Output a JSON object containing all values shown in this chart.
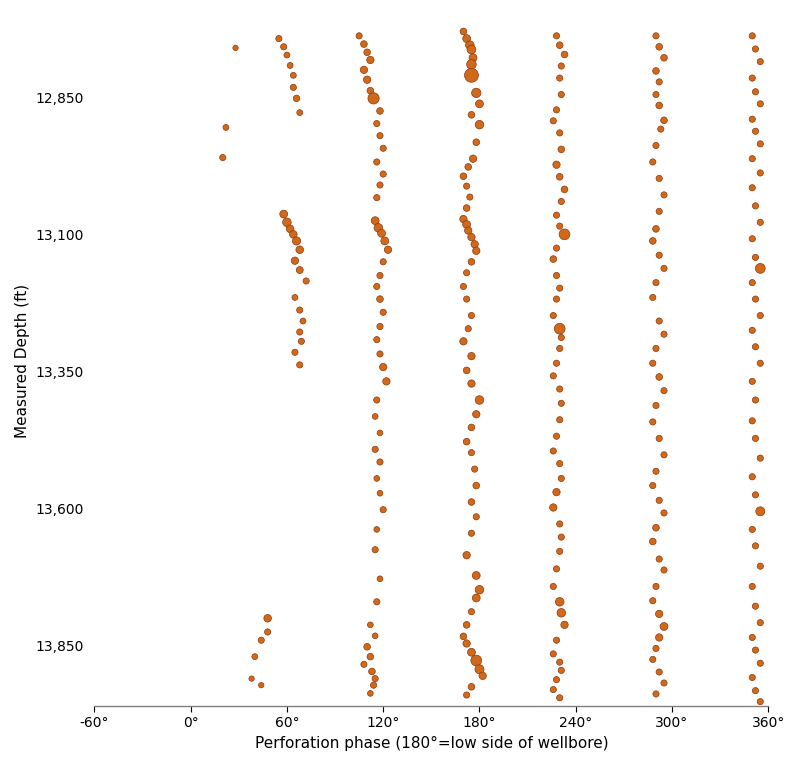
{
  "xlabel": "Perforation phase (180°=low side of wellbore)",
  "ylabel": "Measured Depth (ft)",
  "xlim": [
    -60,
    360
  ],
  "ylim": [
    13960,
    12700
  ],
  "xticks": [
    -60,
    0,
    60,
    120,
    180,
    240,
    300,
    360
  ],
  "yticks": [
    12850,
    13100,
    13350,
    13600,
    13850
  ],
  "bubble_color": "#D2681A",
  "bubble_edge_color": "#8B3A0A",
  "background_color": "#ffffff",
  "points": [
    [
      28,
      12760,
      15
    ],
    [
      22,
      12905,
      18
    ],
    [
      20,
      12960,
      20
    ],
    [
      48,
      13800,
      30
    ],
    [
      48,
      13825,
      20
    ],
    [
      44,
      13840,
      20
    ],
    [
      40,
      13870,
      18
    ],
    [
      38,
      13910,
      15
    ],
    [
      44,
      13922,
      15
    ],
    [
      55,
      12743,
      20
    ],
    [
      58,
      12758,
      20
    ],
    [
      60,
      12773,
      18
    ],
    [
      62,
      12792,
      18
    ],
    [
      64,
      12810,
      18
    ],
    [
      64,
      12832,
      20
    ],
    [
      66,
      12852,
      22
    ],
    [
      68,
      12878,
      18
    ],
    [
      58,
      13063,
      32
    ],
    [
      60,
      13078,
      38
    ],
    [
      62,
      13090,
      30
    ],
    [
      64,
      13100,
      30
    ],
    [
      66,
      13112,
      35
    ],
    [
      68,
      13128,
      30
    ],
    [
      65,
      13148,
      28
    ],
    [
      68,
      13165,
      25
    ],
    [
      72,
      13185,
      20
    ],
    [
      65,
      13215,
      18
    ],
    [
      68,
      13238,
      20
    ],
    [
      70,
      13258,
      18
    ],
    [
      68,
      13278,
      20
    ],
    [
      69,
      13295,
      20
    ],
    [
      65,
      13315,
      20
    ],
    [
      68,
      13338,
      20
    ],
    [
      105,
      12738,
      20
    ],
    [
      108,
      12753,
      23
    ],
    [
      110,
      12768,
      23
    ],
    [
      112,
      12782,
      28
    ],
    [
      108,
      12800,
      28
    ],
    [
      110,
      12818,
      28
    ],
    [
      112,
      12838,
      23
    ],
    [
      114,
      12852,
      65
    ],
    [
      118,
      12875,
      23
    ],
    [
      116,
      12898,
      20
    ],
    [
      118,
      12920,
      20
    ],
    [
      120,
      12943,
      20
    ],
    [
      116,
      12968,
      20
    ],
    [
      120,
      12990,
      20
    ],
    [
      118,
      13010,
      20
    ],
    [
      116,
      13033,
      20
    ],
    [
      115,
      13075,
      32
    ],
    [
      117,
      13088,
      38
    ],
    [
      119,
      13098,
      32
    ],
    [
      121,
      13112,
      32
    ],
    [
      123,
      13128,
      28
    ],
    [
      120,
      13150,
      20
    ],
    [
      118,
      13175,
      20
    ],
    [
      116,
      13195,
      20
    ],
    [
      118,
      13218,
      23
    ],
    [
      120,
      13242,
      20
    ],
    [
      118,
      13268,
      20
    ],
    [
      116,
      13292,
      20
    ],
    [
      118,
      13318,
      20
    ],
    [
      120,
      13342,
      28
    ],
    [
      122,
      13368,
      28
    ],
    [
      116,
      13402,
      20
    ],
    [
      115,
      13432,
      17
    ],
    [
      118,
      13462,
      17
    ],
    [
      115,
      13492,
      20
    ],
    [
      118,
      13515,
      20
    ],
    [
      116,
      13545,
      17
    ],
    [
      118,
      13572,
      17
    ],
    [
      120,
      13602,
      20
    ],
    [
      116,
      13638,
      17
    ],
    [
      115,
      13675,
      20
    ],
    [
      118,
      13728,
      17
    ],
    [
      116,
      13770,
      20
    ],
    [
      112,
      13812,
      17
    ],
    [
      115,
      13832,
      17
    ],
    [
      110,
      13852,
      23
    ],
    [
      112,
      13870,
      23
    ],
    [
      108,
      13884,
      20
    ],
    [
      113,
      13897,
      23
    ],
    [
      115,
      13910,
      20
    ],
    [
      114,
      13922,
      20
    ],
    [
      112,
      13937,
      17
    ],
    [
      170,
      12730,
      23
    ],
    [
      172,
      12743,
      32
    ],
    [
      174,
      12755,
      38
    ],
    [
      175,
      12763,
      40
    ],
    [
      176,
      12778,
      32
    ],
    [
      175,
      12790,
      48
    ],
    [
      175,
      12810,
      100
    ],
    [
      178,
      12842,
      45
    ],
    [
      180,
      12862,
      32
    ],
    [
      175,
      12882,
      23
    ],
    [
      180,
      12900,
      38
    ],
    [
      178,
      12932,
      23
    ],
    [
      176,
      12962,
      28
    ],
    [
      173,
      12977,
      23
    ],
    [
      170,
      12994,
      23
    ],
    [
      172,
      13012,
      20
    ],
    [
      174,
      13032,
      20
    ],
    [
      172,
      13052,
      23
    ],
    [
      170,
      13072,
      28
    ],
    [
      172,
      13082,
      32
    ],
    [
      173,
      13093,
      28
    ],
    [
      175,
      13105,
      28
    ],
    [
      177,
      13118,
      28
    ],
    [
      178,
      13130,
      28
    ],
    [
      175,
      13150,
      23
    ],
    [
      172,
      13170,
      20
    ],
    [
      170,
      13195,
      20
    ],
    [
      172,
      13218,
      20
    ],
    [
      175,
      13248,
      20
    ],
    [
      173,
      13272,
      20
    ],
    [
      170,
      13295,
      28
    ],
    [
      175,
      13322,
      28
    ],
    [
      172,
      13348,
      23
    ],
    [
      175,
      13372,
      28
    ],
    [
      180,
      13402,
      38
    ],
    [
      178,
      13428,
      28
    ],
    [
      175,
      13452,
      23
    ],
    [
      172,
      13478,
      23
    ],
    [
      175,
      13498,
      20
    ],
    [
      177,
      13528,
      20
    ],
    [
      178,
      13558,
      23
    ],
    [
      175,
      13588,
      23
    ],
    [
      178,
      13615,
      20
    ],
    [
      175,
      13645,
      20
    ],
    [
      172,
      13685,
      28
    ],
    [
      178,
      13722,
      32
    ],
    [
      180,
      13748,
      38
    ],
    [
      178,
      13763,
      32
    ],
    [
      175,
      13788,
      20
    ],
    [
      172,
      13812,
      23
    ],
    [
      170,
      13833,
      23
    ],
    [
      172,
      13846,
      28
    ],
    [
      175,
      13862,
      32
    ],
    [
      178,
      13877,
      60
    ],
    [
      180,
      13893,
      42
    ],
    [
      182,
      13905,
      28
    ],
    [
      175,
      13925,
      23
    ],
    [
      172,
      13940,
      20
    ],
    [
      228,
      12738,
      20
    ],
    [
      230,
      12755,
      23
    ],
    [
      233,
      12772,
      23
    ],
    [
      231,
      12793,
      20
    ],
    [
      230,
      12815,
      20
    ],
    [
      231,
      12845,
      20
    ],
    [
      228,
      12873,
      20
    ],
    [
      226,
      12893,
      20
    ],
    [
      230,
      12915,
      20
    ],
    [
      231,
      12945,
      23
    ],
    [
      228,
      12973,
      28
    ],
    [
      230,
      12995,
      23
    ],
    [
      233,
      13018,
      23
    ],
    [
      231,
      13040,
      20
    ],
    [
      228,
      13065,
      20
    ],
    [
      230,
      13085,
      20
    ],
    [
      233,
      13100,
      60
    ],
    [
      228,
      13125,
      20
    ],
    [
      226,
      13145,
      23
    ],
    [
      228,
      13175,
      20
    ],
    [
      230,
      13198,
      20
    ],
    [
      228,
      13218,
      20
    ],
    [
      226,
      13248,
      20
    ],
    [
      230,
      13272,
      60
    ],
    [
      231,
      13288,
      20
    ],
    [
      230,
      13308,
      20
    ],
    [
      228,
      13335,
      20
    ],
    [
      226,
      13358,
      20
    ],
    [
      230,
      13382,
      20
    ],
    [
      231,
      13408,
      20
    ],
    [
      230,
      13438,
      20
    ],
    [
      228,
      13468,
      20
    ],
    [
      226,
      13495,
      20
    ],
    [
      230,
      13518,
      20
    ],
    [
      231,
      13545,
      20
    ],
    [
      228,
      13570,
      28
    ],
    [
      226,
      13598,
      28
    ],
    [
      230,
      13628,
      20
    ],
    [
      231,
      13652,
      20
    ],
    [
      230,
      13678,
      20
    ],
    [
      228,
      13710,
      20
    ],
    [
      226,
      13742,
      20
    ],
    [
      230,
      13770,
      38
    ],
    [
      231,
      13790,
      38
    ],
    [
      233,
      13812,
      28
    ],
    [
      228,
      13840,
      20
    ],
    [
      226,
      13865,
      20
    ],
    [
      230,
      13880,
      20
    ],
    [
      231,
      13895,
      20
    ],
    [
      228,
      13912,
      20
    ],
    [
      226,
      13930,
      20
    ],
    [
      230,
      13945,
      20
    ],
    [
      290,
      12738,
      20
    ],
    [
      292,
      12758,
      23
    ],
    [
      295,
      12778,
      23
    ],
    [
      290,
      12802,
      23
    ],
    [
      292,
      12822,
      20
    ],
    [
      290,
      12845,
      20
    ],
    [
      292,
      12865,
      23
    ],
    [
      295,
      12892,
      23
    ],
    [
      293,
      12908,
      20
    ],
    [
      290,
      12938,
      20
    ],
    [
      288,
      12968,
      20
    ],
    [
      292,
      12998,
      20
    ],
    [
      295,
      13028,
      20
    ],
    [
      292,
      13058,
      20
    ],
    [
      290,
      13090,
      23
    ],
    [
      288,
      13112,
      23
    ],
    [
      292,
      13138,
      20
    ],
    [
      295,
      13162,
      20
    ],
    [
      290,
      13188,
      20
    ],
    [
      288,
      13215,
      20
    ],
    [
      292,
      13258,
      20
    ],
    [
      295,
      13282,
      20
    ],
    [
      290,
      13308,
      20
    ],
    [
      288,
      13335,
      20
    ],
    [
      292,
      13360,
      23
    ],
    [
      295,
      13385,
      20
    ],
    [
      290,
      13412,
      20
    ],
    [
      288,
      13442,
      20
    ],
    [
      292,
      13472,
      20
    ],
    [
      295,
      13502,
      20
    ],
    [
      290,
      13532,
      20
    ],
    [
      288,
      13558,
      20
    ],
    [
      292,
      13585,
      20
    ],
    [
      295,
      13608,
      20
    ],
    [
      290,
      13635,
      23
    ],
    [
      288,
      13660,
      23
    ],
    [
      292,
      13692,
      20
    ],
    [
      295,
      13712,
      20
    ],
    [
      290,
      13742,
      20
    ],
    [
      288,
      13768,
      20
    ],
    [
      292,
      13792,
      28
    ],
    [
      295,
      13815,
      32
    ],
    [
      292,
      13835,
      28
    ],
    [
      290,
      13855,
      20
    ],
    [
      288,
      13875,
      20
    ],
    [
      292,
      13898,
      20
    ],
    [
      295,
      13918,
      20
    ],
    [
      290,
      13938,
      20
    ],
    [
      350,
      12738,
      20
    ],
    [
      352,
      12762,
      20
    ],
    [
      355,
      12785,
      20
    ],
    [
      350,
      12815,
      20
    ],
    [
      352,
      12840,
      20
    ],
    [
      355,
      12862,
      20
    ],
    [
      350,
      12890,
      20
    ],
    [
      352,
      12912,
      20
    ],
    [
      355,
      12935,
      20
    ],
    [
      350,
      12962,
      20
    ],
    [
      355,
      12988,
      20
    ],
    [
      350,
      13015,
      20
    ],
    [
      352,
      13048,
      20
    ],
    [
      355,
      13078,
      20
    ],
    [
      350,
      13108,
      20
    ],
    [
      352,
      13142,
      20
    ],
    [
      355,
      13162,
      50
    ],
    [
      350,
      13188,
      20
    ],
    [
      352,
      13218,
      20
    ],
    [
      355,
      13248,
      20
    ],
    [
      350,
      13275,
      20
    ],
    [
      352,
      13305,
      20
    ],
    [
      355,
      13335,
      20
    ],
    [
      350,
      13368,
      20
    ],
    [
      352,
      13402,
      20
    ],
    [
      350,
      13440,
      20
    ],
    [
      352,
      13472,
      20
    ],
    [
      355,
      13508,
      20
    ],
    [
      350,
      13542,
      20
    ],
    [
      352,
      13575,
      20
    ],
    [
      355,
      13605,
      42
    ],
    [
      350,
      13638,
      20
    ],
    [
      352,
      13668,
      20
    ],
    [
      355,
      13705,
      20
    ],
    [
      350,
      13742,
      20
    ],
    [
      352,
      13778,
      20
    ],
    [
      355,
      13808,
      20
    ],
    [
      350,
      13835,
      20
    ],
    [
      352,
      13858,
      20
    ],
    [
      355,
      13882,
      20
    ],
    [
      350,
      13908,
      20
    ],
    [
      352,
      13932,
      20
    ],
    [
      355,
      13952,
      20
    ]
  ]
}
